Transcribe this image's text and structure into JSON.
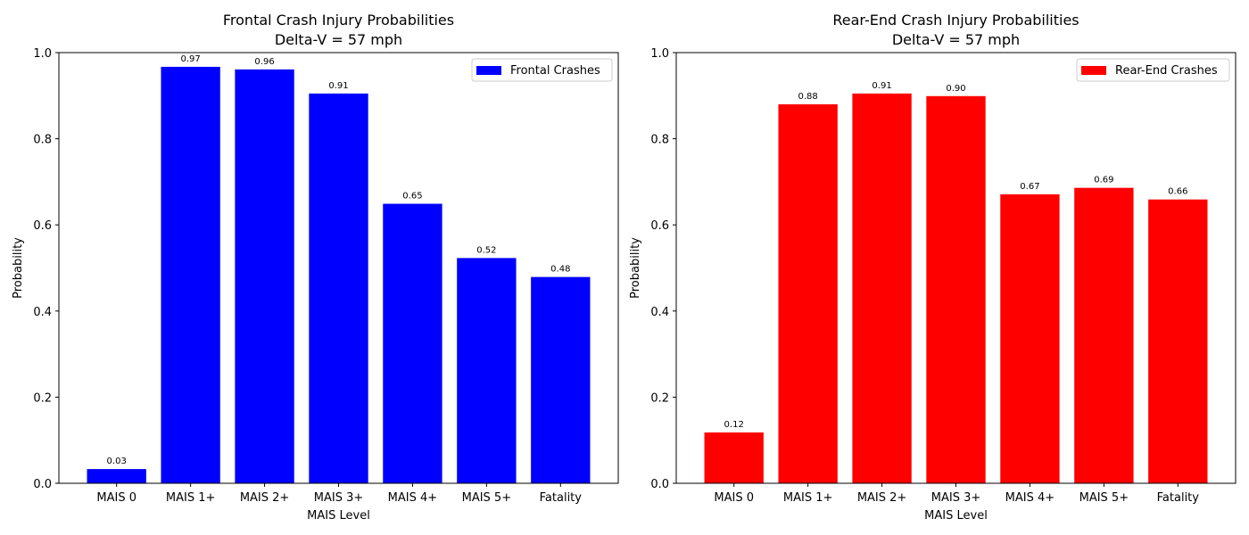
{
  "chart_data": [
    {
      "type": "bar",
      "title": "Frontal Crash Injury Probabilities\nDelta-V = 57 mph",
      "title_lines": [
        "Frontal Crash Injury Probabilities",
        "Delta-V = 57 mph"
      ],
      "xlabel": "MAIS Level",
      "ylabel": "Probability",
      "categories": [
        "MAIS 0",
        "MAIS 1+",
        "MAIS 2+",
        "MAIS 3+",
        "MAIS 4+",
        "MAIS 5+",
        "Fatality"
      ],
      "series": [
        {
          "name": "Frontal Crashes",
          "color": "#0000ff",
          "values": [
            0.033,
            0.967,
            0.961,
            0.905,
            0.649,
            0.523,
            0.479
          ],
          "labels": [
            "0.03",
            "0.97",
            "0.96",
            "0.91",
            "0.65",
            "0.52",
            "0.48"
          ]
        }
      ],
      "ylim": [
        0,
        1.0
      ],
      "yticks": [
        "0.0",
        "0.2",
        "0.4",
        "0.6",
        "0.8",
        "1.0"
      ],
      "grid": false,
      "legend_position": "top-right"
    },
    {
      "type": "bar",
      "title": "Rear-End Crash Injury Probabilities\nDelta-V = 57 mph",
      "title_lines": [
        "Rear-End Crash Injury Probabilities",
        "Delta-V = 57 mph"
      ],
      "xlabel": "MAIS Level",
      "ylabel": "Probability",
      "categories": [
        "MAIS 0",
        "MAIS 1+",
        "MAIS 2+",
        "MAIS 3+",
        "MAIS 4+",
        "MAIS 5+",
        "Fatality"
      ],
      "series": [
        {
          "name": "Rear-End Crashes",
          "color": "#ff0000",
          "values": [
            0.118,
            0.88,
            0.905,
            0.899,
            0.671,
            0.686,
            0.659
          ],
          "labels": [
            "0.12",
            "0.88",
            "0.91",
            "0.90",
            "0.67",
            "0.69",
            "0.66"
          ]
        }
      ],
      "ylim": [
        0,
        1.0
      ],
      "yticks": [
        "0.0",
        "0.2",
        "0.4",
        "0.6",
        "0.8",
        "1.0"
      ],
      "grid": false,
      "legend_position": "top-right"
    }
  ]
}
